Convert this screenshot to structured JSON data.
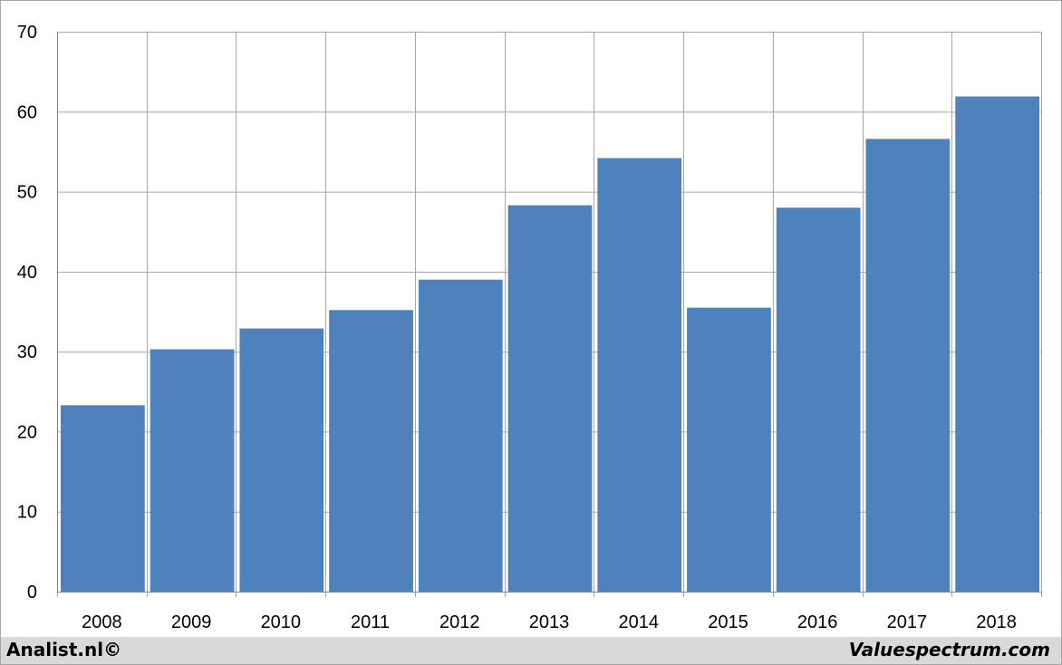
{
  "chart_data": {
    "type": "bar",
    "categories": [
      "2008",
      "2009",
      "2010",
      "2011",
      "2012",
      "2013",
      "2014",
      "2015",
      "2016",
      "2017",
      "2018"
    ],
    "values": [
      23.3,
      30.3,
      32.9,
      35.2,
      39.0,
      48.3,
      54.2,
      35.5,
      48.0,
      56.6,
      61.9
    ],
    "ylim": [
      0,
      70
    ],
    "yticks": [
      0,
      10,
      20,
      30,
      40,
      50,
      60,
      70
    ],
    "grid": true,
    "bar_color": "#4f81bd",
    "grid_color": "#a6a6a6"
  },
  "footer": {
    "left": "Analist.nl©",
    "right": "Valuespectrum.com"
  }
}
